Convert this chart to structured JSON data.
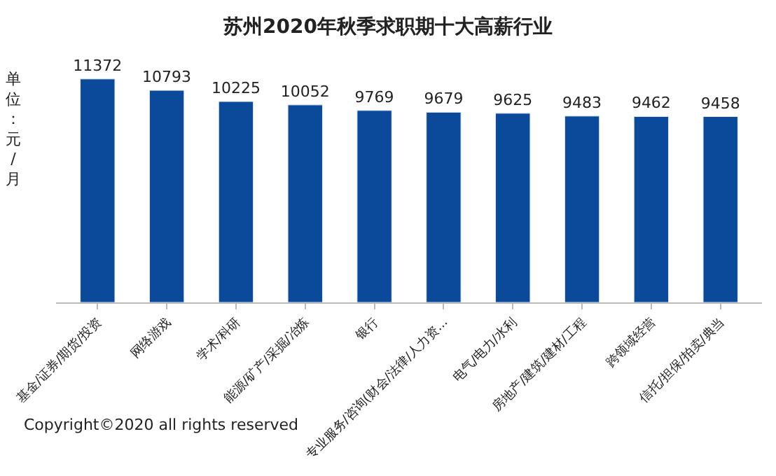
{
  "chart_data": {
    "type": "bar",
    "title": "苏州2020年秋季求职期十大高薪行业",
    "ylabel": "单位：元/月",
    "categories": [
      "基金/证券/期货/投资",
      "网络游戏",
      "学术/科研",
      "能源/矿产/采掘/冶炼",
      "银行",
      "专业服务/咨询(财会/法律/人力资...",
      "电气/电力/水利",
      "房地产/建筑/建材/工程",
      "跨领域经营",
      "信托/担保/拍卖/典当"
    ],
    "values": [
      11372,
      10793,
      10225,
      10052,
      9769,
      9679,
      9625,
      9483,
      9462,
      9458
    ],
    "color": "#0b4a9a",
    "data_labels": true,
    "tick_labels": "x",
    "annotations": [
      "Copyright©2020 all rights reserved"
    ]
  }
}
